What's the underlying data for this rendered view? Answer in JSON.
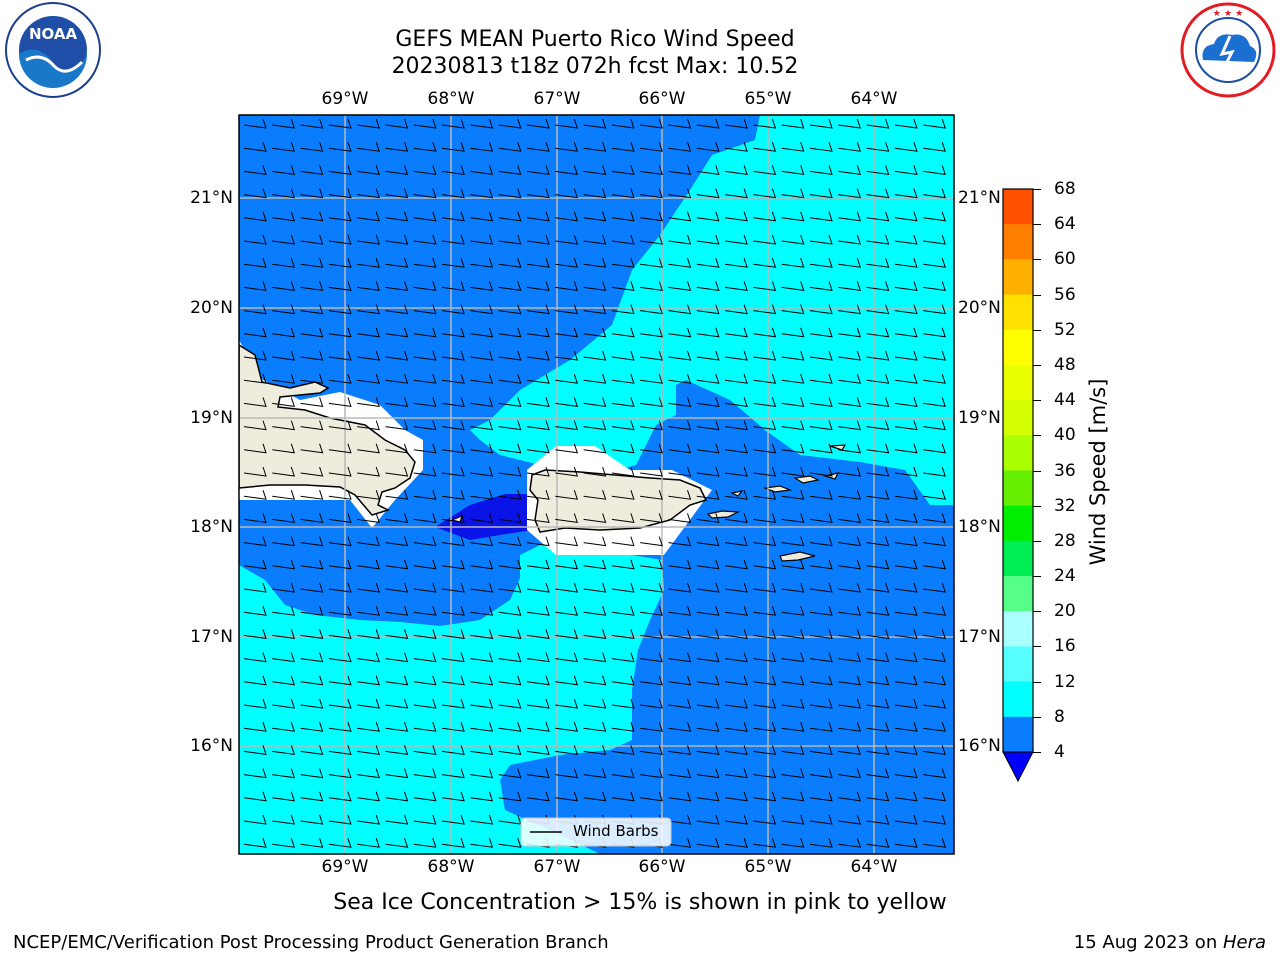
{
  "header": {
    "title_line1": "GEFS MEAN Puerto Rico Wind Speed",
    "title_line2": "20230813 t18z 072h fcst   Max: 10.52"
  },
  "logos": {
    "left": {
      "text": "NOAA",
      "ring_text": "NATIONAL OCEANIC AND ATMOSPHERIC ADMINISTRATION · U.S. DEPARTMENT OF COMMERCE",
      "icon": "noaa-logo"
    },
    "right": {
      "ring_text": "NATIONAL WEATHER SERVICE",
      "icon": "nws-logo"
    }
  },
  "map": {
    "lon_labels": [
      "69°W",
      "68°W",
      "67°W",
      "66°W",
      "65°W",
      "64°W"
    ],
    "lat_labels": [
      "21°N",
      "20°N",
      "19°N",
      "18°N",
      "17°N",
      "16°N"
    ],
    "legend_label": "Wind Barbs",
    "colors": {
      "land": "#eeecdc",
      "ocean_4_8": "#0a7dff",
      "ocean_8_12": "#00ffff",
      "ocean_below_4": "#0a14e6",
      "gridline": "#b8b8b8"
    }
  },
  "colorbar": {
    "label": "Wind Speed [m/s]",
    "ticks": [
      "68",
      "64",
      "60",
      "56",
      "52",
      "48",
      "44",
      "40",
      "36",
      "32",
      "28",
      "24",
      "20",
      "16",
      "12",
      "8",
      "4"
    ],
    "colors": [
      "#ff0000",
      "#ff2000",
      "#ff5000",
      "#ff8000",
      "#ffb000",
      "#ffe000",
      "#ffff00",
      "#eaff00",
      "#d4ff00",
      "#aaff00",
      "#66ee00",
      "#00ee00",
      "#00ee55",
      "#55ff88",
      "#aaffff",
      "#55ffff",
      "#00ffff",
      "#0a7dff"
    ],
    "extend_color": "#0000ff"
  },
  "caption": "Sea Ice Concentration > 15% is shown in pink to yellow",
  "footer": {
    "left": "NCEP/EMC/Verification Post Processing Product Generation Branch",
    "right_prefix": "15 Aug 2023 on ",
    "right_machine": "Hera"
  }
}
